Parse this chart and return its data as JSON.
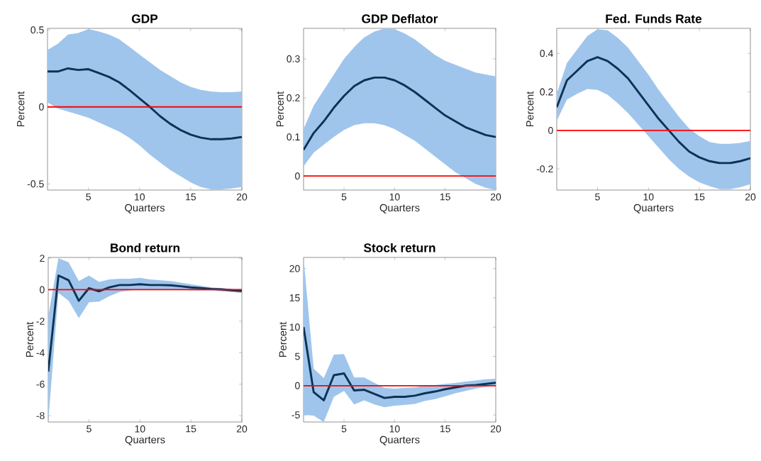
{
  "chart_data": [
    {
      "type": "line",
      "title": "GDP",
      "xlabel": "Quarters",
      "ylabel": "Percent",
      "x": [
        1,
        2,
        3,
        4,
        5,
        6,
        7,
        8,
        9,
        10,
        11,
        12,
        13,
        14,
        15,
        16,
        17,
        18,
        19,
        20
      ],
      "xlim": [
        1,
        20
      ],
      "xticks": [
        5,
        10,
        15,
        20
      ],
      "ylim": [
        -0.54,
        0.51
      ],
      "yticks": [
        -0.5,
        0,
        0.5
      ],
      "series": [
        {
          "color": "#0e3253",
          "values": [
            0.23,
            0.23,
            0.25,
            0.24,
            0.245,
            0.22,
            0.195,
            0.16,
            0.11,
            0.055,
            0.0,
            -0.06,
            -0.11,
            -0.15,
            -0.18,
            -0.2,
            -0.21,
            -0.21,
            -0.205,
            -0.195
          ],
          "upper": [
            0.37,
            0.41,
            0.47,
            0.48,
            0.505,
            0.49,
            0.47,
            0.44,
            0.39,
            0.34,
            0.29,
            0.24,
            0.2,
            0.16,
            0.13,
            0.11,
            0.1,
            0.095,
            0.095,
            0.1
          ],
          "lower": [
            0.03,
            -0.01,
            -0.03,
            -0.05,
            -0.07,
            -0.1,
            -0.13,
            -0.16,
            -0.2,
            -0.25,
            -0.31,
            -0.36,
            -0.41,
            -0.45,
            -0.49,
            -0.52,
            -0.535,
            -0.535,
            -0.53,
            -0.52
          ]
        }
      ],
      "ref_lines": [
        {
          "axis": "y",
          "value": 0,
          "color": "#ff0000"
        }
      ]
    },
    {
      "type": "line",
      "title": "GDP Deflator",
      "xlabel": "Quarters",
      "ylabel": "Percent",
      "x": [
        1,
        2,
        3,
        4,
        5,
        6,
        7,
        8,
        9,
        10,
        11,
        12,
        13,
        14,
        15,
        16,
        17,
        18,
        19,
        20
      ],
      "xlim": [
        1,
        20
      ],
      "xticks": [
        5,
        10,
        15,
        20
      ],
      "ylim": [
        -0.036,
        0.378
      ],
      "yticks": [
        0,
        0.1,
        0.2,
        0.3
      ],
      "series": [
        {
          "color": "#0e3253",
          "values": [
            0.067,
            0.11,
            0.14,
            0.175,
            0.205,
            0.23,
            0.245,
            0.252,
            0.252,
            0.245,
            0.232,
            0.215,
            0.195,
            0.175,
            0.155,
            0.14,
            0.125,
            0.115,
            0.105,
            0.1
          ],
          "upper": [
            0.12,
            0.18,
            0.22,
            0.26,
            0.3,
            0.33,
            0.355,
            0.37,
            0.378,
            0.376,
            0.365,
            0.35,
            0.33,
            0.31,
            0.295,
            0.285,
            0.275,
            0.265,
            0.26,
            0.255
          ],
          "lower": [
            0.025,
            0.06,
            0.08,
            0.1,
            0.118,
            0.13,
            0.135,
            0.135,
            0.13,
            0.12,
            0.105,
            0.09,
            0.07,
            0.05,
            0.03,
            0.01,
            -0.005,
            -0.02,
            -0.03,
            -0.036
          ]
        }
      ],
      "ref_lines": [
        {
          "axis": "y",
          "value": 0,
          "color": "#ff0000"
        }
      ]
    },
    {
      "type": "line",
      "title": "Fed. Funds Rate",
      "xlabel": "Quarters",
      "ylabel": "Percent",
      "x": [
        1,
        2,
        3,
        4,
        5,
        6,
        7,
        8,
        9,
        10,
        11,
        12,
        13,
        14,
        15,
        16,
        17,
        18,
        19,
        20
      ],
      "xlim": [
        1,
        20
      ],
      "xticks": [
        5,
        10,
        15,
        20
      ],
      "ylim": [
        -0.31,
        0.53
      ],
      "yticks": [
        -0.2,
        0,
        0.2,
        0.4
      ],
      "series": [
        {
          "color": "#0e3253",
          "values": [
            0.12,
            0.26,
            0.31,
            0.36,
            0.38,
            0.36,
            0.32,
            0.27,
            0.2,
            0.13,
            0.06,
            0.0,
            -0.06,
            -0.11,
            -0.14,
            -0.16,
            -0.17,
            -0.17,
            -0.16,
            -0.145
          ],
          "upper": [
            0.19,
            0.35,
            0.42,
            0.49,
            0.525,
            0.52,
            0.48,
            0.43,
            0.36,
            0.29,
            0.21,
            0.14,
            0.07,
            0.01,
            -0.03,
            -0.06,
            -0.07,
            -0.07,
            -0.065,
            -0.055
          ],
          "lower": [
            0.05,
            0.16,
            0.19,
            0.215,
            0.21,
            0.185,
            0.14,
            0.09,
            0.03,
            -0.03,
            -0.09,
            -0.15,
            -0.2,
            -0.24,
            -0.27,
            -0.29,
            -0.305,
            -0.305,
            -0.295,
            -0.28
          ]
        }
      ],
      "ref_lines": [
        {
          "axis": "y",
          "value": 0,
          "color": "#ff0000"
        }
      ]
    },
    {
      "type": "line",
      "title": "Bond return",
      "xlabel": "Quarters",
      "ylabel": "Percent",
      "x": [
        1,
        2,
        3,
        4,
        5,
        6,
        7,
        8,
        9,
        10,
        11,
        12,
        13,
        14,
        15,
        16,
        17,
        18,
        19,
        20
      ],
      "xlim": [
        1,
        20
      ],
      "xticks": [
        5,
        10,
        15,
        20
      ],
      "ylim": [
        -8.4,
        2.05
      ],
      "yticks": [
        -8,
        -6,
        -4,
        -2,
        0,
        2
      ],
      "series": [
        {
          "color": "#0e3253",
          "values": [
            -5.2,
            0.9,
            0.6,
            -0.7,
            0.1,
            -0.1,
            0.15,
            0.3,
            0.3,
            0.35,
            0.3,
            0.3,
            0.28,
            0.22,
            0.15,
            0.1,
            0.05,
            0.02,
            -0.03,
            -0.08
          ],
          "upper": [
            -1.7,
            2.0,
            1.75,
            0.55,
            0.9,
            0.5,
            0.65,
            0.7,
            0.7,
            0.75,
            0.65,
            0.6,
            0.55,
            0.45,
            0.35,
            0.25,
            0.15,
            0.1,
            0.05,
            0.05
          ],
          "lower": [
            -8.4,
            -0.2,
            -0.7,
            -1.8,
            -0.8,
            -0.75,
            -0.4,
            -0.15,
            -0.05,
            0.0,
            0.0,
            0.0,
            0.0,
            0.0,
            -0.05,
            -0.05,
            -0.05,
            -0.1,
            -0.15,
            -0.2
          ]
        }
      ],
      "ref_lines": [
        {
          "axis": "y",
          "value": 0,
          "color": "#ff0000"
        }
      ]
    },
    {
      "type": "line",
      "title": "Stock return",
      "xlabel": "Quarters",
      "ylabel": "Percent",
      "x": [
        1,
        2,
        3,
        4,
        5,
        6,
        7,
        8,
        9,
        10,
        11,
        12,
        13,
        14,
        15,
        16,
        17,
        18,
        19,
        20
      ],
      "xlim": [
        1,
        20
      ],
      "xticks": [
        5,
        10,
        15,
        20
      ],
      "ylim": [
        -6.2,
        21.9
      ],
      "yticks": [
        -5,
        0,
        5,
        10,
        15,
        20
      ],
      "series": [
        {
          "color": "#0e3253",
          "values": [
            10,
            -1.1,
            -2.5,
            1.8,
            2.1,
            -0.8,
            -0.7,
            -1.4,
            -2.1,
            -1.9,
            -1.9,
            -1.7,
            -1.3,
            -1.0,
            -0.6,
            -0.3,
            0.0,
            0.1,
            0.3,
            0.5
          ],
          "upper": [
            21.9,
            2.9,
            1.3,
            5.3,
            5.4,
            1.4,
            1.4,
            0.5,
            -0.4,
            -0.5,
            -0.4,
            -0.3,
            0.0,
            0.1,
            0.3,
            0.45,
            0.7,
            0.9,
            1.1,
            1.2
          ],
          "lower": [
            -5.0,
            -5.1,
            -6.2,
            -1.9,
            -0.9,
            -3.2,
            -2.5,
            -3.2,
            -3.7,
            -3.4,
            -3.3,
            -3.1,
            -2.6,
            -2.3,
            -1.8,
            -1.3,
            -0.9,
            -0.5,
            -0.2,
            0.0
          ]
        }
      ],
      "ref_lines": [
        {
          "axis": "y",
          "value": 0,
          "color": "#ff0000"
        }
      ]
    }
  ]
}
